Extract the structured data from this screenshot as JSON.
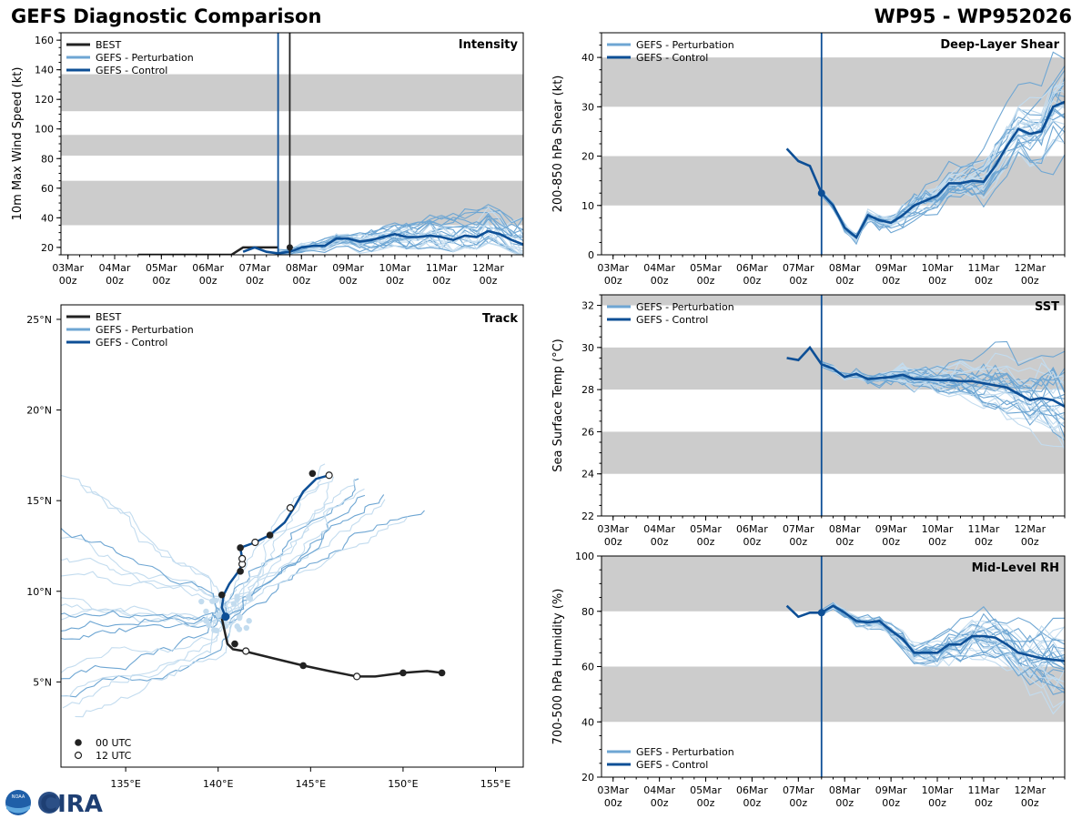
{
  "header": {
    "title": "GEFS Diagnostic Comparison",
    "storm": "WP95 - WP952026"
  },
  "colors": {
    "best": "#222222",
    "control": "#0d4f96",
    "pert_dark": "#6ea6d3",
    "pert_light": "#c3dcef",
    "band": "#cccccc",
    "vline": "#0d4f96"
  },
  "logo": {
    "org1": "NOAA",
    "org2": "CIRA"
  },
  "chart_data": [
    {
      "id": "intensity",
      "type": "line",
      "title": "Intensity",
      "ylabel": "10m Max Wind Speed (kt)",
      "xlim": [
        -0.15,
        9.75
      ],
      "ylim": [
        15,
        165
      ],
      "yticks": [
        20,
        40,
        60,
        80,
        100,
        120,
        140,
        160
      ],
      "xticks": [
        0,
        1,
        2,
        3,
        4,
        5,
        6,
        7,
        8,
        9
      ],
      "xticklabels": [
        "03Mar",
        "04Mar",
        "05Mar",
        "06Mar",
        "07Mar",
        "08Mar",
        "09Mar",
        "10Mar",
        "11Mar",
        "12Mar"
      ],
      "xticklabels2": [
        "00z",
        "00z",
        "00z",
        "00z",
        "00z",
        "00z",
        "00z",
        "00z",
        "00z",
        "00z"
      ],
      "bands": [
        [
          35,
          65
        ],
        [
          82,
          96
        ],
        [
          112,
          137
        ]
      ],
      "vlines": [
        {
          "x": 4.5,
          "color": "control"
        },
        {
          "x": 4.75,
          "color": "best"
        }
      ],
      "legend": [
        "BEST",
        "GEFS - Perturbation",
        "GEFS - Control"
      ],
      "best": {
        "x": [
          1.5,
          2,
          2.5,
          3,
          3.5,
          3.75,
          4,
          4.25,
          4.5
        ],
        "y": [
          15,
          15,
          15,
          15,
          15,
          20,
          20,
          20,
          20
        ]
      },
      "best_point": {
        "x": 4.75,
        "y": 20
      },
      "control": {
        "x": [
          3.75,
          4,
          4.25,
          4.5,
          4.75,
          5,
          5.25,
          5.5,
          5.75,
          6,
          6.25,
          6.5,
          6.75,
          7,
          7.25,
          7.5,
          7.75,
          8,
          8.25,
          8.5,
          8.75,
          9,
          9.25,
          9.5,
          9.75
        ],
        "y": [
          17,
          20,
          17,
          16,
          17,
          20,
          21,
          21,
          26,
          26,
          24,
          25,
          27,
          29,
          27,
          27,
          28,
          27,
          25,
          28,
          27,
          31,
          29,
          25,
          22
        ]
      }
    },
    {
      "id": "shear",
      "type": "line",
      "title": "Deep-Layer Shear",
      "ylabel": "200-850 hPa Shear (kt)",
      "xlim": [
        -0.25,
        9.75
      ],
      "ylim": [
        0,
        45
      ],
      "yticks": [
        0,
        10,
        20,
        30,
        40
      ],
      "xticks": [
        0,
        1,
        2,
        3,
        4,
        5,
        6,
        7,
        8,
        9
      ],
      "xticklabels": [
        "03Mar",
        "04Mar",
        "05Mar",
        "06Mar",
        "07Mar",
        "08Mar",
        "09Mar",
        "10Mar",
        "11Mar",
        "12Mar"
      ],
      "xticklabels2": [
        "00z",
        "00z",
        "00z",
        "00z",
        "00z",
        "00z",
        "00z",
        "00z",
        "00z",
        "00z"
      ],
      "bands": [
        [
          10,
          20
        ],
        [
          30,
          40
        ]
      ],
      "vlines": [
        {
          "x": 4.5,
          "color": "control"
        }
      ],
      "legend": [
        "GEFS - Perturbation",
        "GEFS - Control"
      ],
      "marker": {
        "x": 4.5,
        "y": 12.5
      },
      "control": {
        "x": [
          3.75,
          4,
          4.25,
          4.5,
          4.75,
          5,
          5.25,
          5.5,
          5.75,
          6,
          6.25,
          6.5,
          6.75,
          7,
          7.25,
          7.5,
          7.75,
          8,
          8.25,
          8.5,
          8.75,
          9,
          9.25,
          9.5,
          9.75
        ],
        "y": [
          21.5,
          19,
          18,
          12.5,
          10,
          5.5,
          3.5,
          8,
          7,
          6.5,
          8,
          10,
          11,
          12,
          14.5,
          14.5,
          15,
          14.8,
          18,
          22,
          25.5,
          24.5,
          25,
          30,
          31
        ]
      }
    },
    {
      "id": "sst",
      "type": "line",
      "title": "SST",
      "ylabel": "Sea Surface Temp (°C)",
      "xlim": [
        -0.25,
        9.75
      ],
      "ylim": [
        22,
        32.5
      ],
      "yticks": [
        22,
        24,
        26,
        28,
        30,
        32
      ],
      "xticks": [
        0,
        1,
        2,
        3,
        4,
        5,
        6,
        7,
        8,
        9
      ],
      "xticklabels": [
        "03Mar",
        "04Mar",
        "05Mar",
        "06Mar",
        "07Mar",
        "08Mar",
        "09Mar",
        "10Mar",
        "11Mar",
        "12Mar"
      ],
      "xticklabels2": [
        "00z",
        "00z",
        "00z",
        "00z",
        "00z",
        "00z",
        "00z",
        "00z",
        "00z",
        "00z"
      ],
      "bands": [
        [
          24,
          26
        ],
        [
          28,
          30
        ],
        [
          32,
          34
        ]
      ],
      "vlines": [
        {
          "x": 4.5,
          "color": "control"
        }
      ],
      "legend": [
        "GEFS - Perturbation",
        "GEFS - Control"
      ],
      "control": {
        "x": [
          3.75,
          4,
          4.25,
          4.5,
          4.75,
          5,
          5.25,
          5.5,
          5.75,
          6,
          6.25,
          6.5,
          6.75,
          7,
          7.25,
          7.5,
          7.75,
          8,
          8.25,
          8.5,
          8.75,
          9,
          9.25,
          9.5,
          9.75
        ],
        "y": [
          29.5,
          29.4,
          30,
          29.2,
          29,
          28.6,
          28.75,
          28.5,
          28.55,
          28.6,
          28.7,
          28.5,
          28.5,
          28.45,
          28.45,
          28.4,
          28.4,
          28.3,
          28.2,
          28.1,
          27.8,
          27.5,
          27.6,
          27.5,
          27.2
        ]
      }
    },
    {
      "id": "rh",
      "type": "line",
      "title": "Mid-Level RH",
      "ylabel": "700-500 hPa Humidity (%)",
      "xlim": [
        -0.25,
        9.75
      ],
      "ylim": [
        20,
        100
      ],
      "yticks": [
        20,
        40,
        60,
        80,
        100
      ],
      "xticks": [
        0,
        1,
        2,
        3,
        4,
        5,
        6,
        7,
        8,
        9
      ],
      "xticklabels": [
        "03Mar",
        "04Mar",
        "05Mar",
        "06Mar",
        "07Mar",
        "08Mar",
        "09Mar",
        "10Mar",
        "11Mar",
        "12Mar"
      ],
      "xticklabels2": [
        "00z",
        "00z",
        "00z",
        "00z",
        "00z",
        "00z",
        "00z",
        "00z",
        "00z",
        "00z"
      ],
      "bands": [
        [
          40,
          60
        ],
        [
          80,
          100
        ]
      ],
      "vlines": [
        {
          "x": 4.5,
          "color": "control"
        }
      ],
      "legend": [
        "GEFS - Perturbation",
        "GEFS - Control"
      ],
      "marker": {
        "x": 4.5,
        "y": 79.5
      },
      "control": {
        "x": [
          3.75,
          4,
          4.25,
          4.5,
          4.75,
          5,
          5.25,
          5.5,
          5.75,
          6,
          6.25,
          6.5,
          6.75,
          7,
          7.25,
          7.5,
          7.75,
          8,
          8.25,
          8.5,
          8.75,
          9,
          9.25,
          9.5,
          9.75
        ],
        "y": [
          82,
          78,
          79.5,
          79.5,
          82,
          79.5,
          76.5,
          76,
          76.5,
          73,
          70,
          65,
          65,
          65,
          68,
          68,
          71,
          71,
          70.5,
          68,
          65,
          64,
          63,
          62.5,
          62
        ]
      }
    },
    {
      "id": "track",
      "type": "scatter",
      "title": "Track",
      "xlim": [
        131.5,
        156.5
      ],
      "ylim": [
        0.3,
        25.8
      ],
      "xticks": [
        135,
        140,
        145,
        150,
        155
      ],
      "xticklabels": [
        "135°E",
        "140°E",
        "145°E",
        "150°E",
        "155°E"
      ],
      "yticks": [
        5,
        10,
        15,
        20,
        25
      ],
      "yticklabels": [
        "5°N",
        "10°N",
        "15°N",
        "20°N",
        "25°N"
      ],
      "legend": [
        "BEST",
        "GEFS - Perturbation",
        "GEFS - Control"
      ],
      "legend2": [
        "00 UTC",
        "12 UTC"
      ],
      "best": {
        "lon": [
          152.1,
          151.3,
          150.0,
          148.5,
          147.5,
          146.0,
          144.6,
          143.0,
          141.4,
          140.8,
          140.5,
          140.2
        ],
        "lat": [
          5.5,
          5.6,
          5.5,
          5.3,
          5.3,
          5.6,
          5.9,
          6.3,
          6.7,
          6.8,
          7.1,
          8.5
        ]
      },
      "best_00": [
        [
          152.1,
          5.5
        ],
        [
          150.0,
          5.5
        ],
        [
          144.6,
          5.9
        ],
        [
          140.9,
          7.1
        ]
      ],
      "best_12": [
        [
          147.5,
          5.3
        ],
        [
          141.5,
          6.7
        ]
      ],
      "control": {
        "lon": [
          140.4,
          140.2,
          140.3,
          140.6,
          141.1,
          141.3,
          141.3,
          141.2,
          142.0,
          142.8,
          143.6,
          144.1,
          144.6,
          145.3,
          146.0
        ],
        "lat": [
          8.6,
          9.1,
          9.8,
          10.4,
          11.1,
          11.5,
          11.8,
          12.4,
          12.7,
          13.1,
          13.8,
          14.6,
          15.5,
          16.2,
          16.4
        ]
      },
      "control_00": [
        [
          140.2,
          9.8
        ],
        [
          141.2,
          11.1
        ],
        [
          141.2,
          12.4
        ],
        [
          142.8,
          13.1
        ],
        [
          145.1,
          16.5
        ]
      ],
      "control_12": [
        [
          141.3,
          11.5
        ],
        [
          141.3,
          11.8
        ],
        [
          142.0,
          12.7
        ],
        [
          143.9,
          14.6
        ],
        [
          146.0,
          16.4
        ]
      ],
      "init": [
        140.4,
        8.6
      ]
    }
  ]
}
